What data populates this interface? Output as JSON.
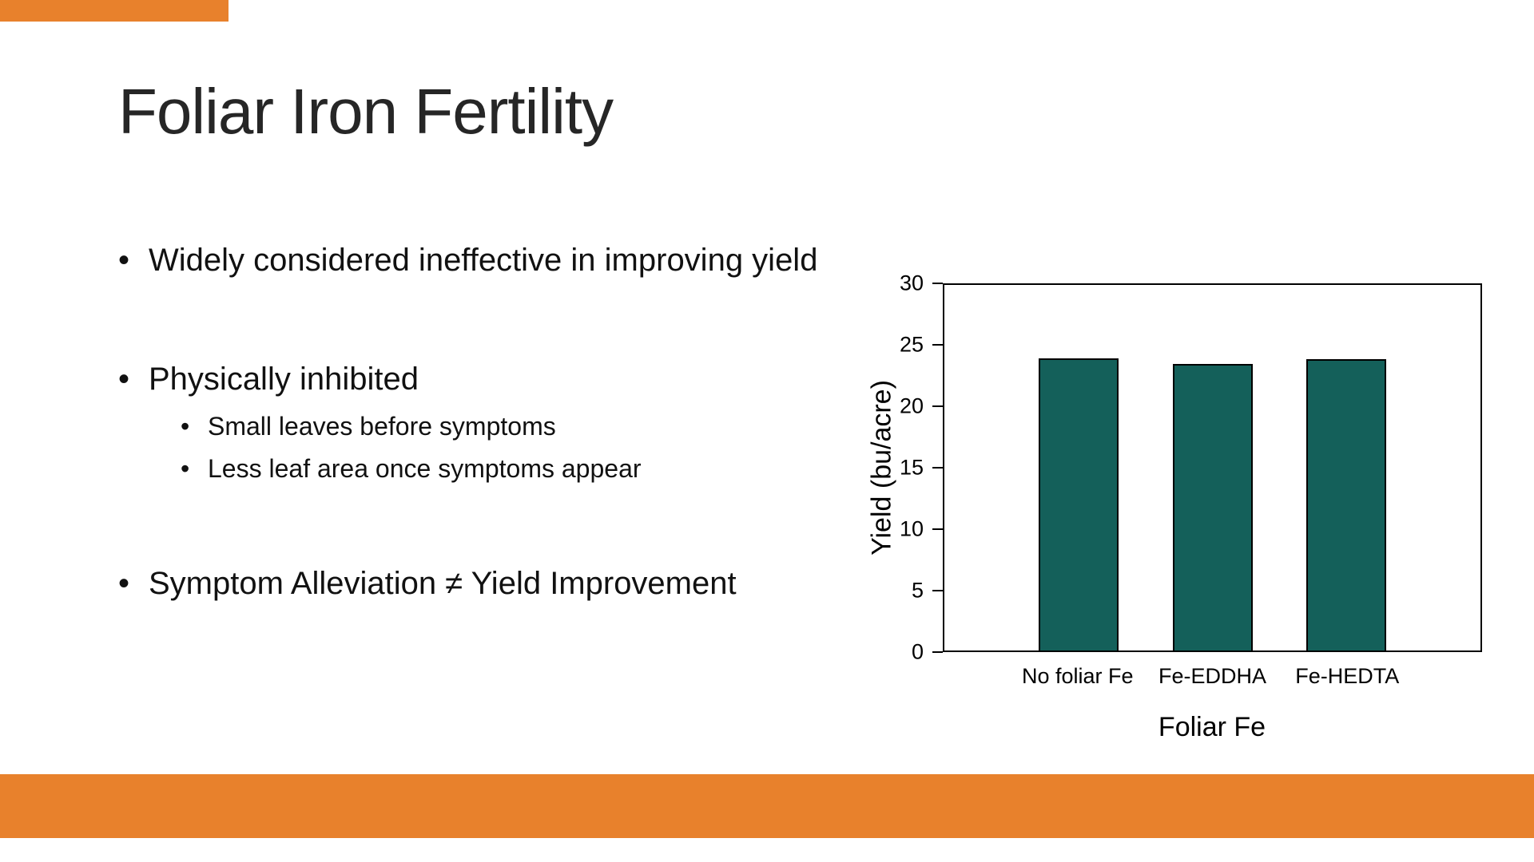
{
  "slide": {
    "title": "Foliar Iron Fertility",
    "accent_color": "#E8812C",
    "bullets": [
      {
        "level": 1,
        "text": "Widely considered ineffective in improving yield"
      },
      {
        "level": 1,
        "text": "Physically inhibited"
      },
      {
        "level": 2,
        "text": "Small leaves before symptoms"
      },
      {
        "level": 2,
        "text": "Less leaf area once symptoms appear"
      },
      {
        "level": 1,
        "text": "Symptom Alleviation ≠ Yield Improvement"
      }
    ]
  },
  "chart_data": {
    "type": "bar",
    "categories": [
      "No foliar Fe",
      "Fe-EDDHA",
      "Fe-HEDTA"
    ],
    "values": [
      24,
      23.5,
      23.9
    ],
    "title": "",
    "xlabel": "Foliar Fe",
    "ylabel": "Yield (bu/acre)",
    "ylim": [
      0,
      30
    ],
    "yticks": [
      0,
      5,
      10,
      15,
      20,
      25,
      30
    ],
    "bar_color": "#14605A",
    "grid": false,
    "legend": false
  }
}
